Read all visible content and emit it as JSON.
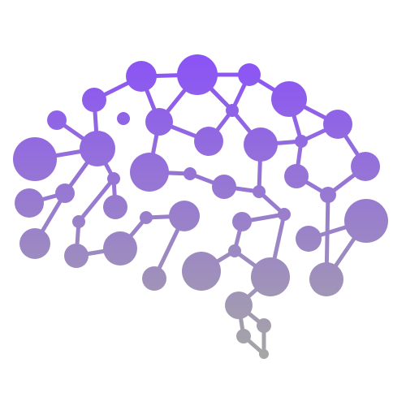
{
  "logo": {
    "name": "brain-network-logo",
    "depicts": "brain-made-of-connected-nodes",
    "gradient": {
      "top_color": "#8a52f7",
      "bottom_color": "#a6a6a6"
    }
  }
}
